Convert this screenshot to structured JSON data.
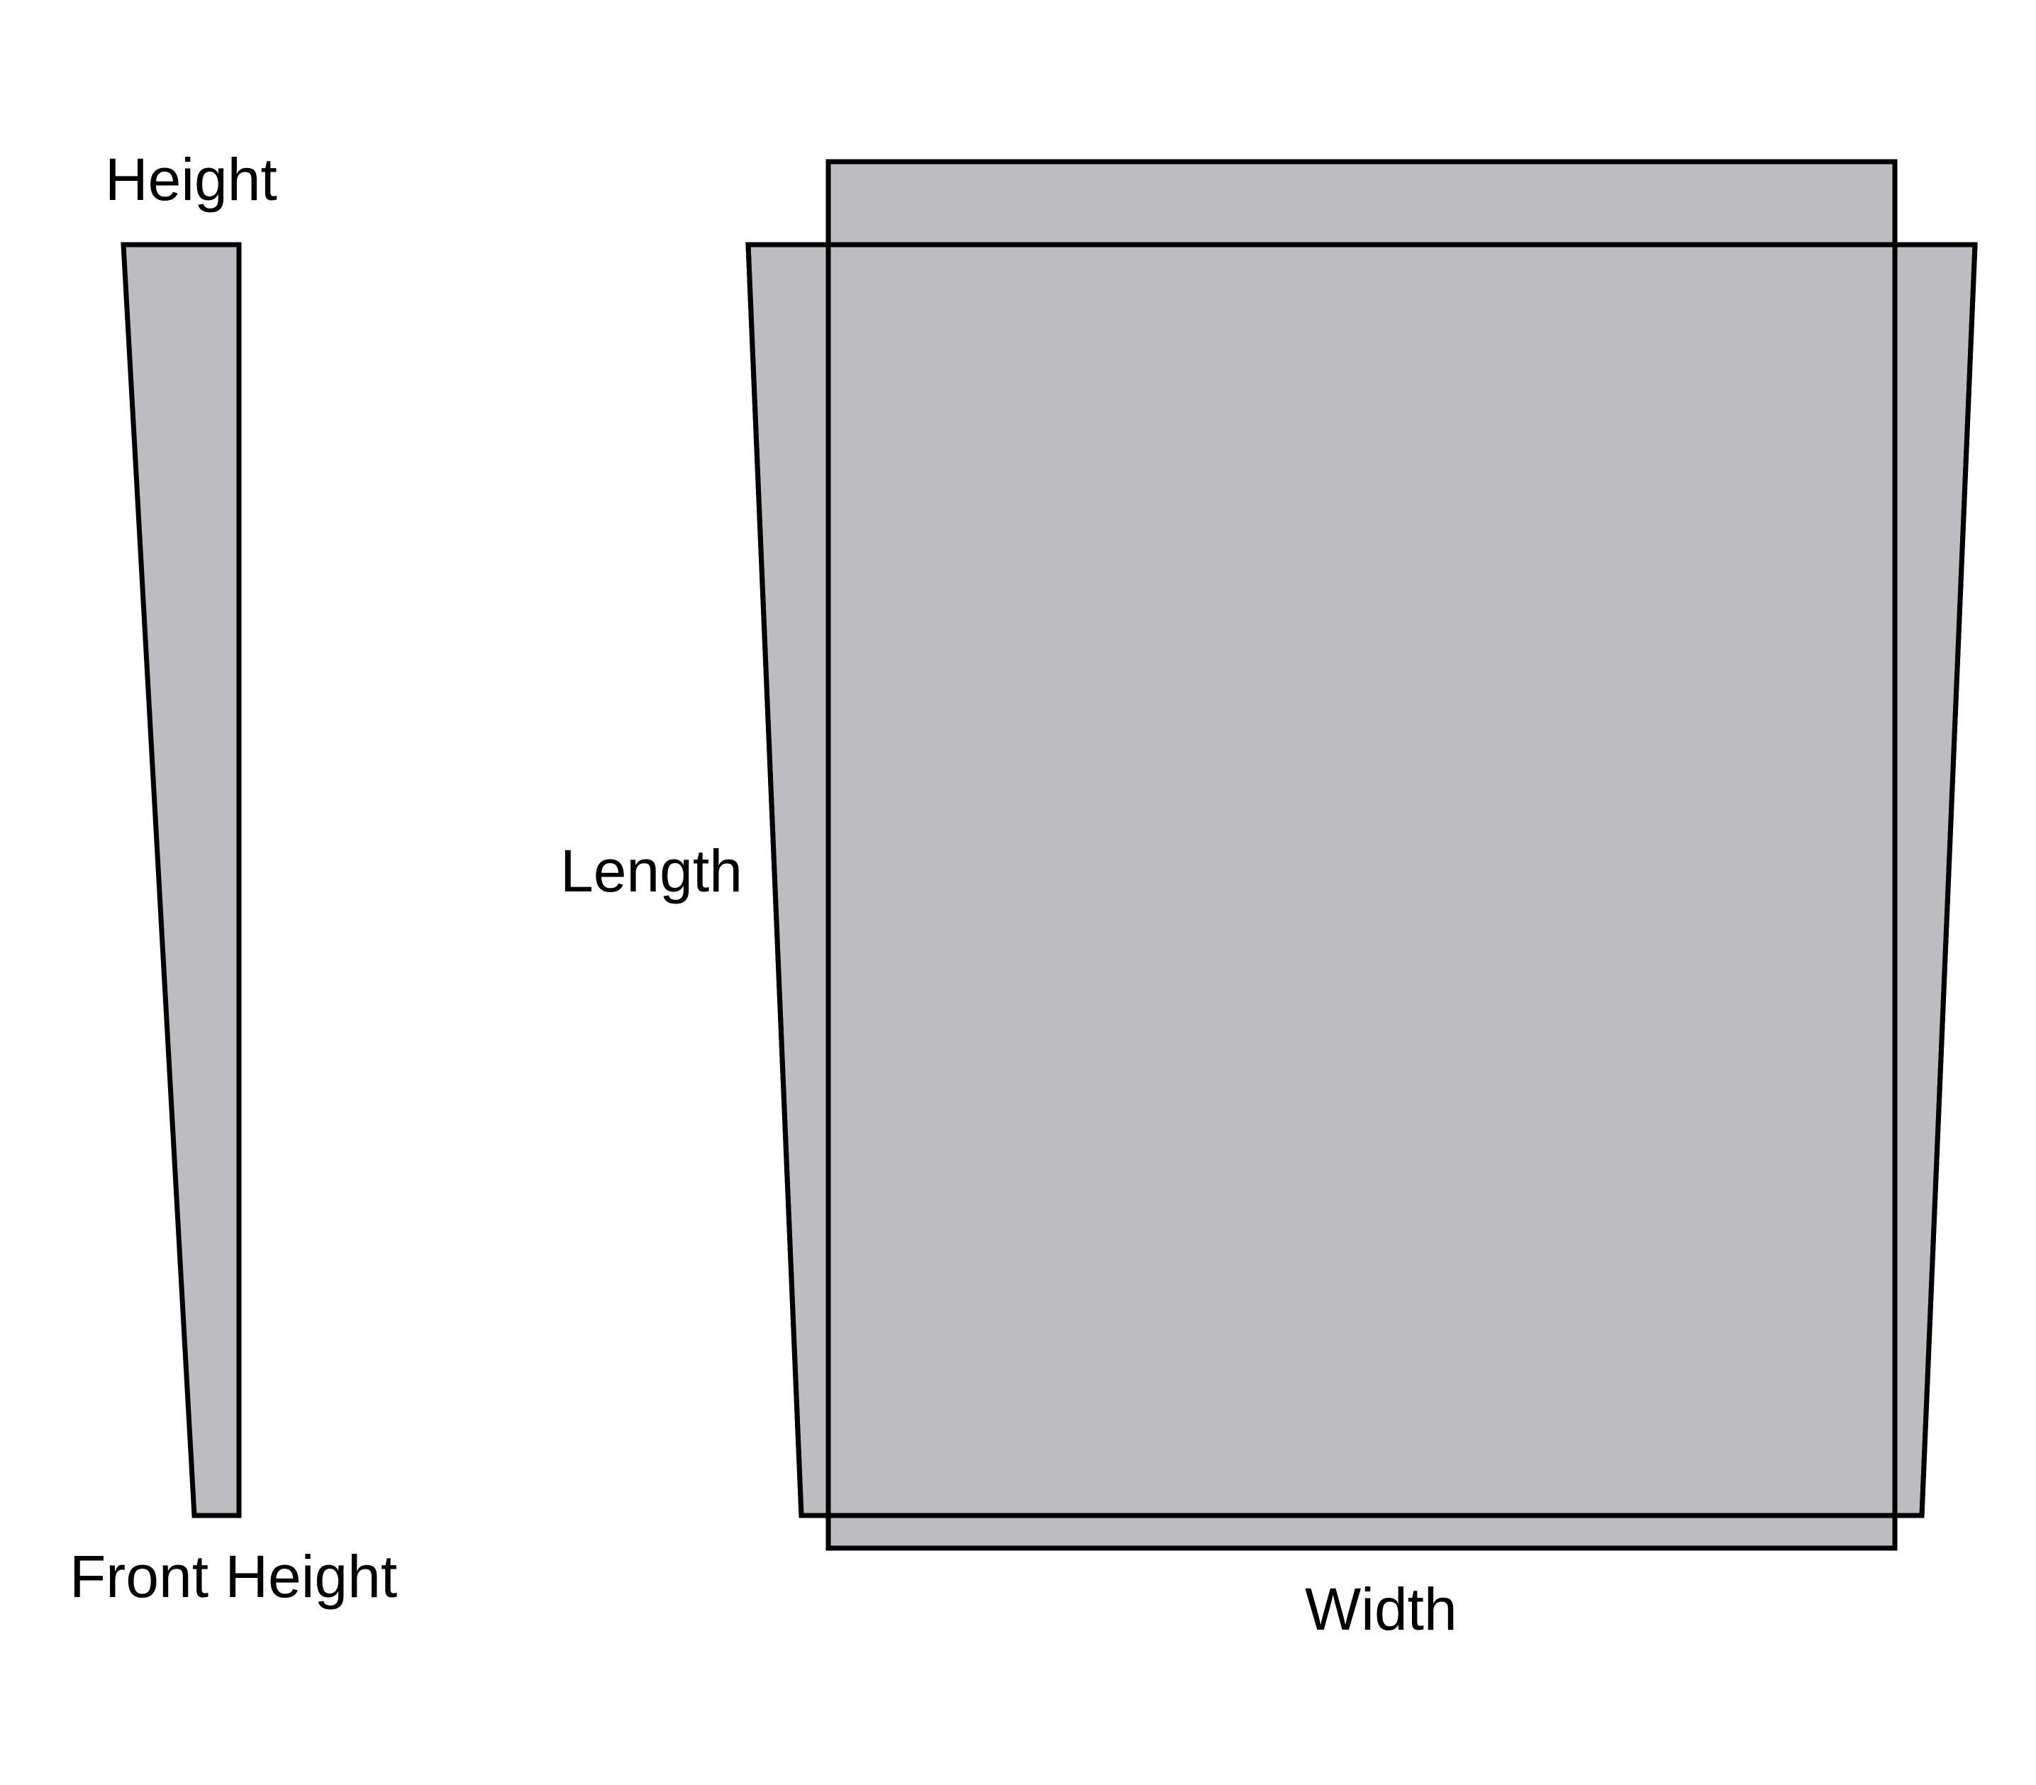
{
  "labels": {
    "height": "Height",
    "front_height": "Front Height",
    "length": "Length",
    "width": "Width"
  },
  "colors": {
    "fill": "#bdbcc1",
    "stroke": "#000000",
    "text": "#000000"
  }
}
